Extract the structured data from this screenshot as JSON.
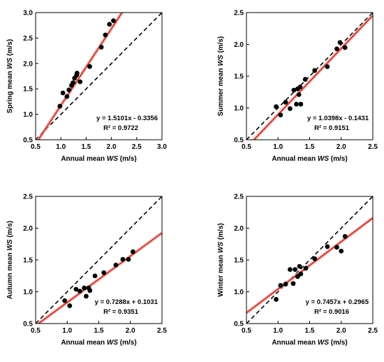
{
  "chart_data": [
    {
      "type": "scatter",
      "panel": "spring",
      "xlabel": "Annual mean WS (m/s)",
      "ylabel": "Spring mean WS (m/s)",
      "xlim": [
        0.5,
        3.0
      ],
      "ylim": [
        0.5,
        3.0
      ],
      "xticks": [
        "0.5",
        "1.0",
        "1.5",
        "2.0",
        "2.5",
        "3.0"
      ],
      "yticks": [
        "0.5",
        "1.0",
        "1.5",
        "2.0",
        "2.5",
        "3.0"
      ],
      "points": [
        [
          0.98,
          1.16
        ],
        [
          1.04,
          1.42
        ],
        [
          1.12,
          1.35
        ],
        [
          1.16,
          1.48
        ],
        [
          1.21,
          1.57
        ],
        [
          1.24,
          1.62
        ],
        [
          1.27,
          1.71
        ],
        [
          1.31,
          1.77
        ],
        [
          1.32,
          1.81
        ],
        [
          1.38,
          1.64
        ],
        [
          1.57,
          1.94
        ],
        [
          1.8,
          2.32
        ],
        [
          1.88,
          2.56
        ],
        [
          1.96,
          2.77
        ],
        [
          2.04,
          2.84
        ]
      ],
      "fit": {
        "slope": 1.5101,
        "intercept": -0.3356
      },
      "equation": "y = 1.5101x - 0.3356",
      "r2": "R² = 0.9722",
      "reference_line": "1:1 dashed",
      "grid": false
    },
    {
      "type": "scatter",
      "panel": "summer",
      "xlabel": "Annual mean WS (m/s)",
      "ylabel": "Summer mean WS (m/s)",
      "xlim": [
        0.5,
        2.5
      ],
      "ylim": [
        0.5,
        2.5
      ],
      "xticks": [
        "0.5",
        "1.0",
        "1.5",
        "2.0",
        "2.5"
      ],
      "yticks": [
        "0.5",
        "1.0",
        "1.5",
        "2.0",
        "2.5"
      ],
      "points": [
        [
          0.97,
          1.02
        ],
        [
          1.04,
          0.89
        ],
        [
          1.12,
          1.09
        ],
        [
          1.19,
          0.99
        ],
        [
          1.25,
          1.28
        ],
        [
          1.29,
          1.06
        ],
        [
          1.31,
          1.3
        ],
        [
          1.33,
          1.21
        ],
        [
          1.35,
          1.33
        ],
        [
          1.36,
          1.06
        ],
        [
          1.43,
          1.45
        ],
        [
          1.58,
          1.59
        ],
        [
          1.78,
          1.65
        ],
        [
          1.93,
          1.93
        ],
        [
          1.98,
          2.03
        ],
        [
          2.06,
          1.95
        ]
      ],
      "fit": {
        "slope": 1.0398,
        "intercept": -0.1431
      },
      "equation": "y = 1.0398x - 0.1431",
      "r2": "R² = 0.9151",
      "reference_line": "1:1 dashed",
      "grid": false
    },
    {
      "type": "scatter",
      "panel": "autumn",
      "xlabel": "Annual mean WS (m/s)",
      "ylabel": "Autumn mean WS (m/s)",
      "xlim": [
        0.5,
        2.5
      ],
      "ylim": [
        0.5,
        2.5
      ],
      "xticks": [
        "0.5",
        "1.0",
        "1.5",
        "2.0",
        "2.5"
      ],
      "yticks": [
        "0.5",
        "1.0",
        "1.5",
        "2.0",
        "2.5"
      ],
      "points": [
        [
          0.96,
          0.86
        ],
        [
          1.04,
          0.78
        ],
        [
          1.14,
          1.04
        ],
        [
          1.2,
          1.01
        ],
        [
          1.27,
          1.06
        ],
        [
          1.3,
          0.93
        ],
        [
          1.34,
          1.06
        ],
        [
          1.36,
          1.02
        ],
        [
          1.44,
          1.25
        ],
        [
          1.58,
          1.3
        ],
        [
          1.77,
          1.42
        ],
        [
          1.88,
          1.51
        ],
        [
          1.97,
          1.51
        ],
        [
          2.04,
          1.63
        ]
      ],
      "fit": {
        "slope": 0.7288,
        "intercept": 0.1031
      },
      "equation": "y = 0.7288x + 0.1031",
      "r2": "R² = 0.9351",
      "reference_line": "1:1 dashed",
      "grid": false
    },
    {
      "type": "scatter",
      "panel": "winter",
      "xlabel": "Annual mean WS (m/s)",
      "ylabel": "Winter mean WS (m/s)",
      "xlim": [
        0.5,
        2.5
      ],
      "ylim": [
        0.5,
        2.5
      ],
      "xticks": [
        "0.5",
        "1.0",
        "1.5",
        "2.0",
        "2.5"
      ],
      "yticks": [
        "0.5",
        "1.0",
        "1.5",
        "2.0",
        "2.5"
      ],
      "points": [
        [
          0.97,
          0.88
        ],
        [
          1.04,
          1.1
        ],
        [
          1.12,
          1.12
        ],
        [
          1.19,
          1.35
        ],
        [
          1.24,
          1.13
        ],
        [
          1.27,
          1.35
        ],
        [
          1.31,
          1.24
        ],
        [
          1.34,
          1.4
        ],
        [
          1.36,
          1.28
        ],
        [
          1.44,
          1.37
        ],
        [
          1.58,
          1.52
        ],
        [
          1.78,
          1.71
        ],
        [
          1.93,
          1.7
        ],
        [
          2.0,
          1.64
        ],
        [
          2.06,
          1.87
        ]
      ],
      "fit": {
        "slope": 0.7457,
        "intercept": 0.2965
      },
      "equation": "y = 0.7457x + 0.2965",
      "r2": "R² = 0.9016",
      "reference_line": "1:1 dashed",
      "grid": false
    }
  ],
  "colors": {
    "fit_line": "#c0392b",
    "fit_band": "#f4a6a6",
    "points": "#000000",
    "reference_line": "#000000"
  }
}
